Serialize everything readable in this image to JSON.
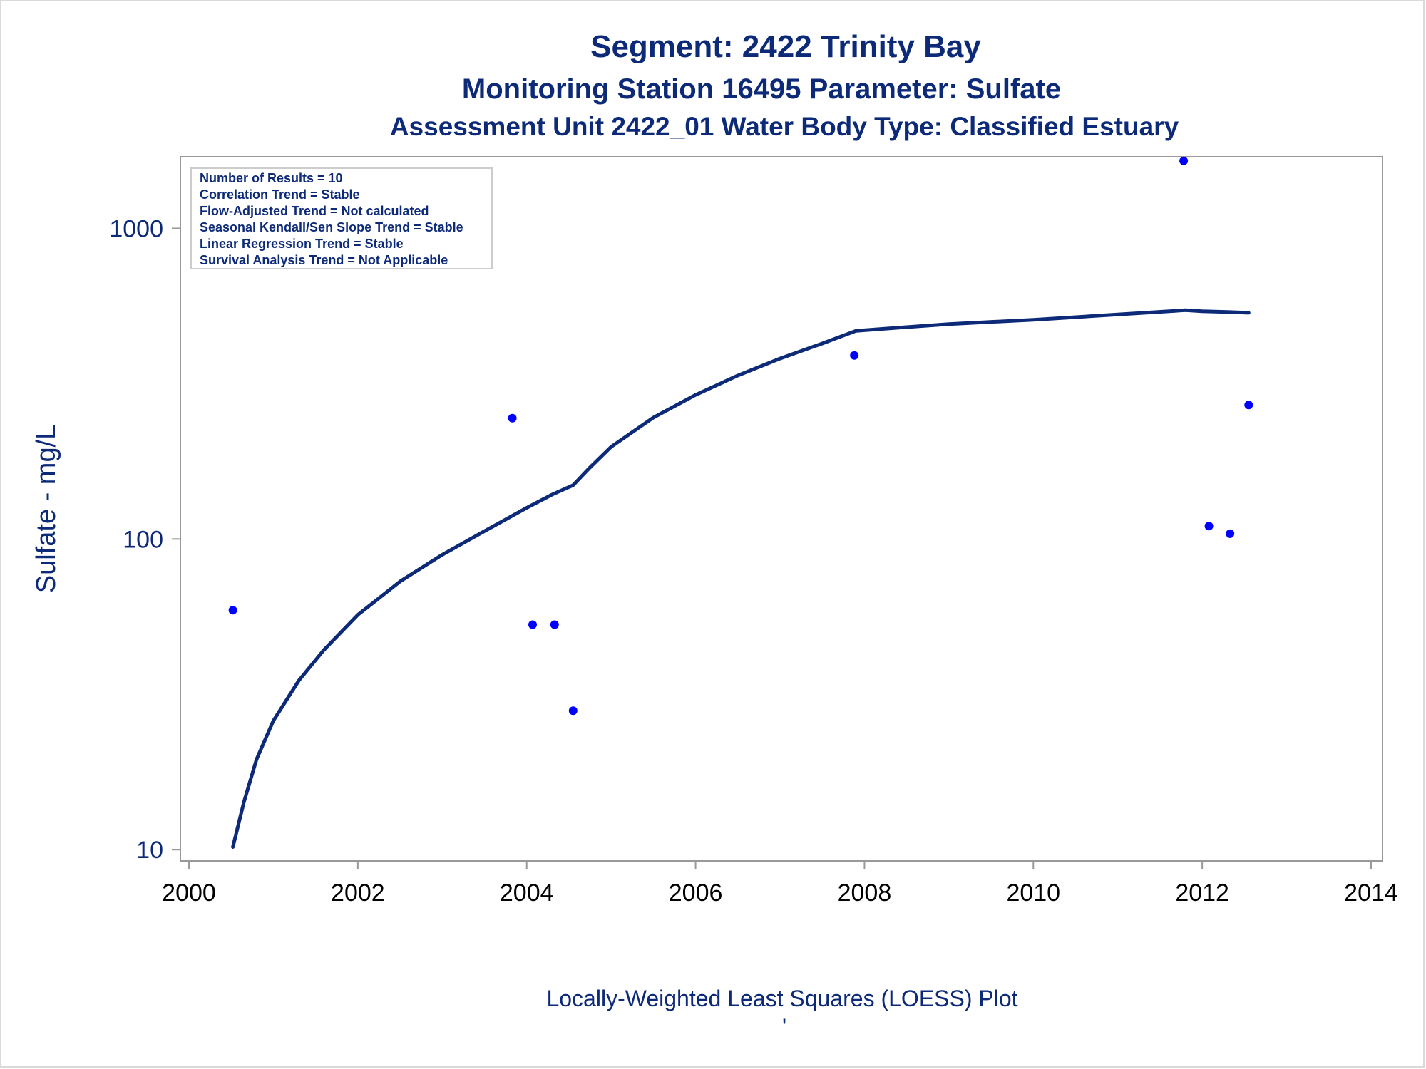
{
  "titles": {
    "line1": "Segment: 2422  Trinity Bay",
    "line2": "Monitoring Station 16495 Parameter: Sulfate",
    "line3": "Assessment Unit 2422_01    Water Body Type: Classified Estuary"
  },
  "stats_box": [
    "Number of Results = 10",
    "Correlation Trend = Stable",
    "Flow-Adjusted Trend = Not calculated",
    "Seasonal Kendall/Sen Slope Trend = Stable",
    "Linear Regression Trend = Stable",
    "Survival Analysis Trend = Not Applicable"
  ],
  "footer": {
    "label": "Locally-Weighted Least Squares (LOESS) Plot",
    "mark": "'"
  },
  "colors": {
    "text": "#0d2a78",
    "points": "#0000ff",
    "curve": "#0d2a78",
    "frame": "#999999"
  },
  "chart_data": {
    "type": "scatter",
    "title": "",
    "xlabel": "",
    "ylabel": "Sulfate - mg/L",
    "y_scale": "log",
    "xlim": [
      2000,
      2014
    ],
    "ylim": [
      9.2,
      1700
    ],
    "x_ticks": [
      2000,
      2002,
      2004,
      2006,
      2008,
      2010,
      2012,
      2014
    ],
    "x_tick_labels": [
      "2000",
      "2002",
      "2004",
      "2006",
      "2008",
      "2010",
      "2012",
      "2014"
    ],
    "y_ticks": [
      10,
      100,
      1000
    ],
    "y_tick_labels": [
      "10",
      "100",
      "1000"
    ],
    "grid": false,
    "series": [
      {
        "kind": "points",
        "x": [
          2000.52,
          2003.83,
          2004.07,
          2004.33,
          2004.55,
          2007.88,
          2011.78,
          2012.08,
          2012.33,
          2012.55
        ],
        "y": [
          59,
          245,
          53,
          53,
          28,
          390,
          1650,
          110,
          104,
          270
        ]
      },
      {
        "kind": "loess-curve",
        "x": [
          2000.52,
          2000.65,
          2000.8,
          2001.0,
          2001.3,
          2001.6,
          2002.0,
          2002.5,
          2003.0,
          2003.5,
          2004.0,
          2004.3,
          2004.55,
          2004.75,
          2005.0,
          2005.5,
          2006.0,
          2006.5,
          2007.0,
          2007.5,
          2007.9,
          2008.5,
          2009.0,
          2010.0,
          2011.0,
          2011.8,
          2012.0,
          2012.3,
          2012.55
        ],
        "y": [
          10.2,
          14.2,
          19.5,
          26,
          35,
          44,
          57,
          73,
          89,
          106,
          126,
          139,
          149,
          170,
          198,
          246,
          291,
          336,
          381,
          426,
          468,
          481,
          492,
          508,
          528,
          545,
          541,
          538,
          535
        ]
      }
    ]
  }
}
